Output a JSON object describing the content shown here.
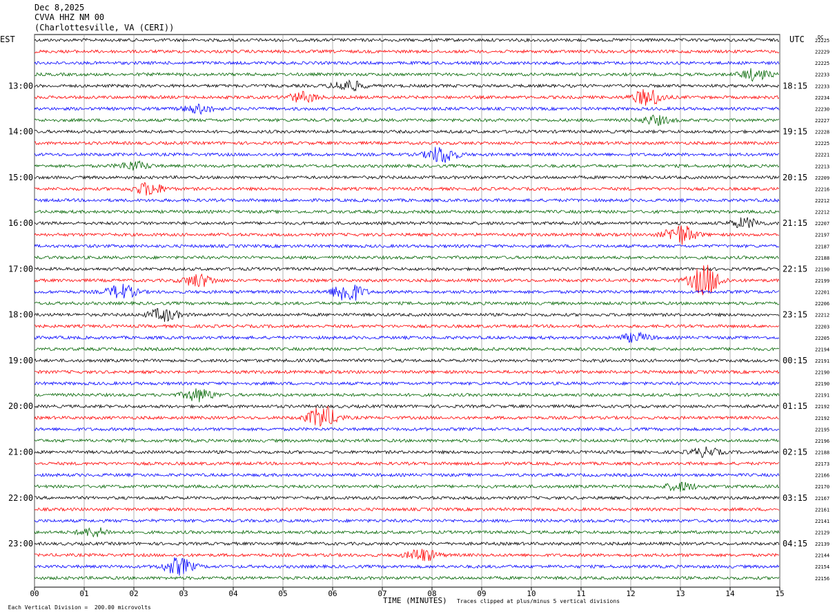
{
  "header": {
    "date": "Dec 8,2025",
    "station": "CVVA HHZ NM 00",
    "location": "(Charlottesville, VA (CERI))"
  },
  "left_tz": "EST",
  "right_tz": "UTC",
  "dc_label": "DC",
  "footer": {
    "left": "Each Vertical Division =  200.00 microvolts",
    "right": "Traces clipped at plus/minus 5 vertical divisions"
  },
  "colors": {
    "trace_cycle": [
      "#000000",
      "#ff0000",
      "#0000ff",
      "#006400"
    ],
    "grid": "#808080"
  },
  "chart_data": {
    "type": "line",
    "title": "",
    "xlabel": "TIME (MINUTES)",
    "ylabel": "",
    "xlim": [
      0,
      15
    ],
    "x_ticks": [
      "00",
      "01",
      "02",
      "03",
      "04",
      "05",
      "06",
      "07",
      "08",
      "09",
      "10",
      "11",
      "12",
      "13",
      "14",
      "15"
    ],
    "left_time_labels": [
      "13:00",
      "14:00",
      "15:00",
      "16:00",
      "17:00",
      "18:00",
      "19:00",
      "20:00",
      "21:00",
      "22:00",
      "23:00"
    ],
    "right_time_labels": [
      "18:15",
      "19:15",
      "20:15",
      "21:15",
      "22:15",
      "23:15",
      "00:15",
      "01:15",
      "02:15",
      "03:15",
      "04:15"
    ],
    "dc_offsets": [
      "22225",
      "22229",
      "22225",
      "22233",
      "22233",
      "22234",
      "22230",
      "22227",
      "22228",
      "22225",
      "22221",
      "22213",
      "22209",
      "22216",
      "22212",
      "22212",
      "22207",
      "22197",
      "22187",
      "22188",
      "22190",
      "22199",
      "22201",
      "22206",
      "22212",
      "22203",
      "22205",
      "22194",
      "22191",
      "22190",
      "22190",
      "22191",
      "22192",
      "22192",
      "22195",
      "22196",
      "22188",
      "22173",
      "22166",
      "22170",
      "22167",
      "22161",
      "22141",
      "22129",
      "22139",
      "22144",
      "22154",
      "22156"
    ],
    "bursts": [
      {
        "trace": 3,
        "minute": 14.5,
        "amp": 8
      },
      {
        "trace": 4,
        "minute": 6.3,
        "amp": 8
      },
      {
        "trace": 5,
        "minute": 12.35,
        "amp": 12
      },
      {
        "trace": 5,
        "minute": 5.4,
        "amp": 7
      },
      {
        "trace": 6,
        "minute": 3.3,
        "amp": 6
      },
      {
        "trace": 7,
        "minute": 12.5,
        "amp": 6
      },
      {
        "trace": 10,
        "minute": 8.2,
        "amp": 12
      },
      {
        "trace": 11,
        "minute": 2.0,
        "amp": 6
      },
      {
        "trace": 13,
        "minute": 2.3,
        "amp": 9
      },
      {
        "trace": 16,
        "minute": 14.3,
        "amp": 7
      },
      {
        "trace": 17,
        "minute": 13.0,
        "amp": 14
      },
      {
        "trace": 21,
        "minute": 3.3,
        "amp": 9
      },
      {
        "trace": 21,
        "minute": 13.5,
        "amp": 22
      },
      {
        "trace": 22,
        "minute": 6.3,
        "amp": 15
      },
      {
        "trace": 22,
        "minute": 1.75,
        "amp": 10
      },
      {
        "trace": 24,
        "minute": 2.6,
        "amp": 9
      },
      {
        "trace": 26,
        "minute": 12.1,
        "amp": 6
      },
      {
        "trace": 31,
        "minute": 3.3,
        "amp": 9
      },
      {
        "trace": 33,
        "minute": 5.8,
        "amp": 16
      },
      {
        "trace": 36,
        "minute": 13.5,
        "amp": 6
      },
      {
        "trace": 39,
        "minute": 13.0,
        "amp": 6
      },
      {
        "trace": 43,
        "minute": 1.2,
        "amp": 6
      },
      {
        "trace": 45,
        "minute": 7.8,
        "amp": 9
      },
      {
        "trace": 46,
        "minute": 2.9,
        "amp": 12
      }
    ]
  }
}
